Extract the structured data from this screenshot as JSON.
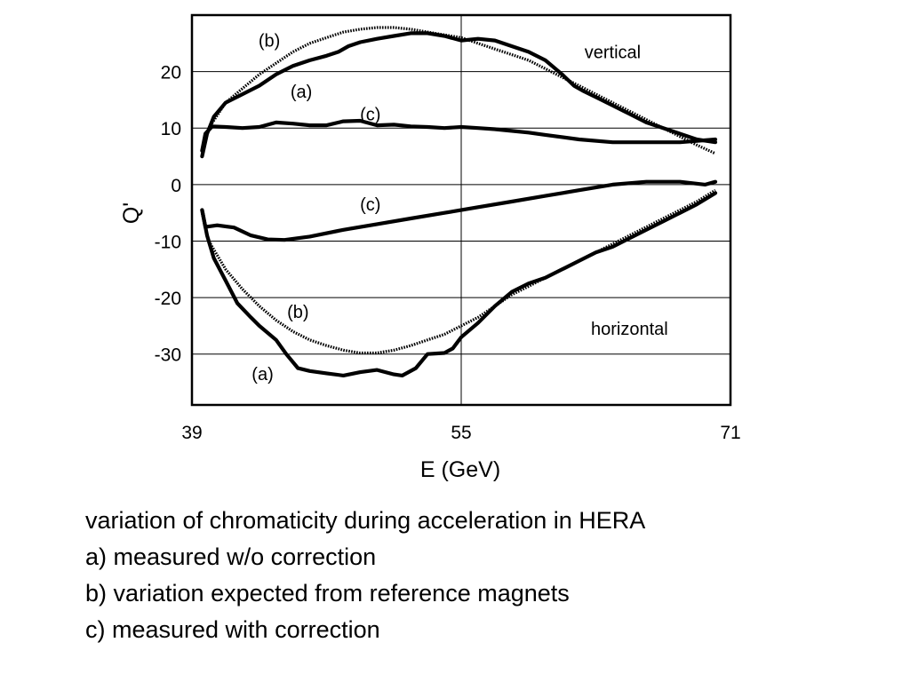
{
  "chart_data": {
    "type": "line",
    "xlabel": "E (GeV)",
    "ylabel": "Q'",
    "xlim": [
      39,
      71
    ],
    "ylim": [
      -39,
      30
    ],
    "xticks": [
      39,
      55,
      71
    ],
    "yticks": [
      20,
      10,
      0,
      -10,
      -20,
      -30
    ],
    "x_gridlines": [
      55
    ],
    "y_gridlines": [
      20,
      10,
      0,
      -10,
      -20,
      -30
    ],
    "panel_labels": [
      {
        "text": "vertical",
        "x": 64,
        "y": 23.5
      },
      {
        "text": "horizontal",
        "x": 65,
        "y": -25.5
      }
    ],
    "curve_labels": [
      {
        "text": "(b)",
        "x": 43.6,
        "y": 25.5
      },
      {
        "text": "(a)",
        "x": 45.5,
        "y": 16.5
      },
      {
        "text": "(c)",
        "x": 49.6,
        "y": 12.5
      },
      {
        "text": "(c)",
        "x": 49.6,
        "y": -3.5
      },
      {
        "text": "(b)",
        "x": 45.3,
        "y": -22.5
      },
      {
        "text": "(a)",
        "x": 43.2,
        "y": -33.5
      }
    ],
    "series": [
      {
        "plane": "vertical",
        "label": "(b)",
        "style": "dotted",
        "x": [
          39.6,
          40,
          41,
          42,
          43,
          44,
          45,
          46,
          47,
          48,
          49,
          50,
          51,
          52,
          53,
          54,
          55,
          56,
          57,
          58,
          59,
          60,
          61,
          62,
          63,
          64,
          65,
          66,
          67,
          68,
          69,
          70.1
        ],
        "y": [
          6,
          10,
          14.5,
          17,
          19.5,
          21.5,
          23.5,
          25,
          26,
          27,
          27.5,
          27.8,
          27.8,
          27.5,
          27,
          26.5,
          26,
          25,
          24,
          23,
          22,
          20.5,
          19,
          17.5,
          16,
          14.5,
          13,
          11.5,
          10,
          8.5,
          7,
          5.5
        ]
      },
      {
        "plane": "vertical",
        "label": "(a)",
        "style": "solid",
        "x": [
          39.6,
          39.9,
          40.3,
          41,
          42,
          43,
          44,
          45,
          46,
          47,
          47.7,
          48.3,
          49,
          50,
          51,
          52,
          53,
          54,
          55,
          56,
          57,
          58,
          59,
          60,
          61,
          61.7,
          62.3,
          63,
          64,
          65,
          66,
          67,
          68,
          69,
          70.1
        ],
        "y": [
          5,
          9,
          12,
          14.5,
          16,
          17.5,
          19.5,
          21,
          22,
          22.8,
          23.5,
          24.5,
          25.2,
          25.8,
          26.3,
          26.8,
          26.8,
          26.3,
          25.5,
          25.8,
          25.5,
          24.5,
          23.5,
          22,
          19.5,
          17.5,
          16.5,
          15.5,
          14,
          12.5,
          11,
          10,
          9,
          8,
          7.5
        ]
      },
      {
        "plane": "vertical",
        "label": "(c)",
        "style": "solid",
        "x": [
          39.6,
          39.8,
          40.2,
          41,
          42,
          43,
          44,
          45,
          46,
          47,
          48,
          49,
          50,
          51,
          52,
          53,
          54,
          55,
          56,
          57,
          58,
          59,
          60,
          62,
          64,
          66,
          68,
          70.1
        ],
        "y": [
          6,
          9,
          10.3,
          10.2,
          10,
          10.2,
          11,
          10.8,
          10.5,
          10.5,
          11.2,
          11.3,
          10.5,
          10.6,
          10.3,
          10.2,
          10,
          10.2,
          10,
          9.8,
          9.5,
          9.2,
          8.8,
          8,
          7.5,
          7.5,
          7.5,
          8
        ]
      },
      {
        "plane": "horizontal",
        "label": "(c)",
        "style": "solid",
        "x": [
          39.6,
          39.8,
          40.5,
          41.5,
          42.5,
          43.5,
          44.5,
          46,
          48,
          50,
          52,
          54,
          56,
          58,
          60,
          62,
          64,
          66,
          68,
          69.5,
          70.1
        ],
        "y": [
          -4.5,
          -7.5,
          -7.2,
          -7.6,
          -9,
          -9.7,
          -9.8,
          -9.2,
          -8,
          -7,
          -6,
          -5,
          -4,
          -3,
          -2,
          -1,
          0,
          0.5,
          0.5,
          0,
          0.5
        ]
      },
      {
        "plane": "horizontal",
        "label": "(b)",
        "style": "dotted",
        "x": [
          39.6,
          40,
          41,
          42,
          43,
          44,
          45,
          46,
          47,
          48,
          49,
          50,
          51,
          52,
          53,
          54,
          55,
          56,
          57,
          58,
          59,
          60,
          61,
          62,
          63,
          64,
          65,
          66,
          67,
          68,
          69,
          70.1
        ],
        "y": [
          -5,
          -10,
          -15,
          -18.5,
          -21.5,
          -24,
          -26,
          -27.5,
          -28.5,
          -29.3,
          -29.8,
          -29.8,
          -29.3,
          -28.5,
          -27.5,
          -26.5,
          -25,
          -23.5,
          -21.5,
          -19.5,
          -18,
          -16.5,
          -15,
          -13.5,
          -12,
          -10.5,
          -9,
          -7.5,
          -6,
          -4.5,
          -3,
          -1
        ]
      },
      {
        "plane": "horizontal",
        "label": "(a)",
        "style": "solid",
        "x": [
          39.6,
          39.9,
          40.3,
          41,
          41.7,
          42.5,
          43,
          44,
          44.6,
          45.3,
          46,
          47,
          48,
          49,
          50,
          51,
          51.5,
          52.3,
          53,
          54,
          54.5,
          55,
          56,
          57,
          58,
          59,
          60,
          61,
          62,
          63,
          64,
          65,
          66,
          67,
          68,
          69,
          70.1
        ],
        "y": [
          -4.5,
          -9,
          -13,
          -17,
          -21,
          -23.5,
          -25,
          -27.5,
          -30,
          -32.5,
          -33,
          -33.4,
          -33.8,
          -33.2,
          -32.8,
          -33.6,
          -33.8,
          -32.5,
          -30,
          -29.8,
          -29,
          -27,
          -24.5,
          -21.5,
          -19,
          -17.5,
          -16.5,
          -15,
          -13.5,
          -12,
          -11,
          -9.5,
          -8,
          -6.5,
          -5,
          -3.5,
          -1.5
        ]
      }
    ]
  },
  "caption": {
    "line1": "variation of chromaticity during acceleration in HERA",
    "line2": "a) measured w/o correction",
    "line3": "b) variation expected from reference magnets",
    "line4": "c) measured with correction"
  }
}
